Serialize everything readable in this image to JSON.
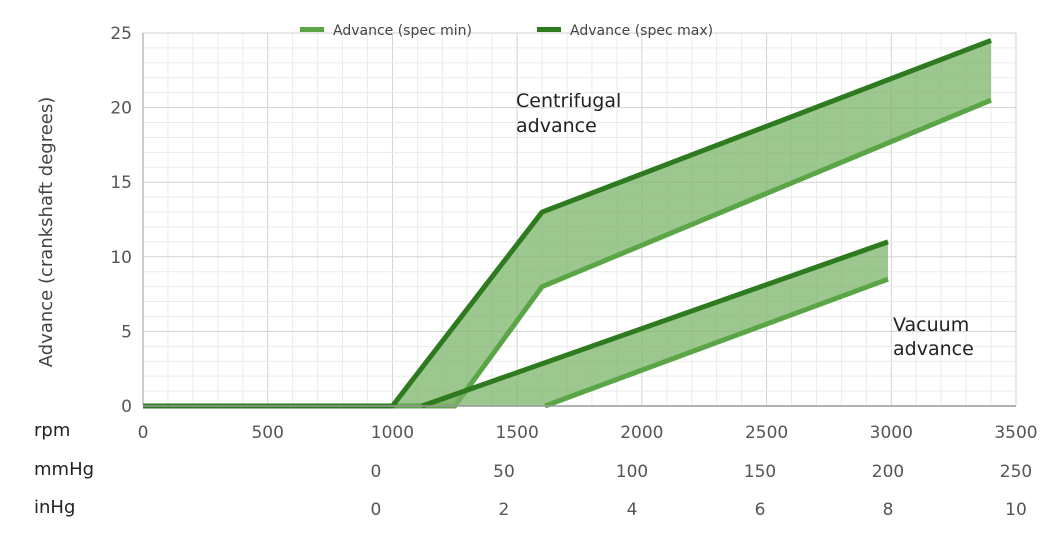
{
  "chart_data": {
    "type": "area",
    "ylabel": "Advance (crankshaft degrees)",
    "ylim": [
      0,
      25
    ],
    "yticks": [
      "0",
      "5",
      "10",
      "15",
      "20",
      "25"
    ],
    "x_rpm": {
      "label": "rpm",
      "range": [
        0,
        3500
      ],
      "ticks": [
        "0",
        "500",
        "1000",
        "1500",
        "2000",
        "2500",
        "3000",
        "3500"
      ]
    },
    "x_mmHg": {
      "label": "mmHg",
      "range": [
        -91,
        250
      ],
      "ticks": [
        "0",
        "50",
        "100",
        "150",
        "200",
        "250"
      ]
    },
    "x_inHg": {
      "label": "inHg",
      "ticks": [
        "0",
        "2",
        "4",
        "6",
        "8",
        "10"
      ]
    },
    "legend": {
      "position": "top",
      "entries": [
        {
          "name": "Advance (spec min)",
          "color": "#5aa646"
        },
        {
          "name": "Advance (spec max)",
          "color": "#2e7a1e"
        }
      ]
    },
    "grid": true,
    "bands": [
      {
        "label": "Centrifugal advance",
        "axis": "rpm",
        "min": {
          "name": "Advance (spec min)",
          "x": [
            0,
            1250,
            1600,
            3400
          ],
          "y": [
            0,
            0,
            8,
            20.5
          ]
        },
        "max": {
          "name": "Advance (spec max)",
          "x": [
            0,
            1000,
            1600,
            3400
          ],
          "y": [
            0,
            0,
            13,
            24.5
          ]
        }
      },
      {
        "label": "Vacuum advance",
        "axis": "mmHg",
        "min": {
          "name": "Advance (spec min)",
          "x": [
            66,
            200
          ],
          "y": [
            0,
            8.5
          ]
        },
        "max": {
          "name": "Advance (spec max)",
          "x": [
            18,
            200
          ],
          "y": [
            0,
            11
          ]
        }
      }
    ],
    "annotations": [
      {
        "text": [
          "Centrifugal",
          "advance"
        ]
      },
      {
        "text": [
          "Vacuum",
          "advance"
        ]
      }
    ],
    "colors": {
      "fill": "#7bb46a",
      "min_line": "#5aa646",
      "max_line": "#2e7a1e",
      "grid": "#dcdcdc",
      "axis": "#999999"
    }
  }
}
